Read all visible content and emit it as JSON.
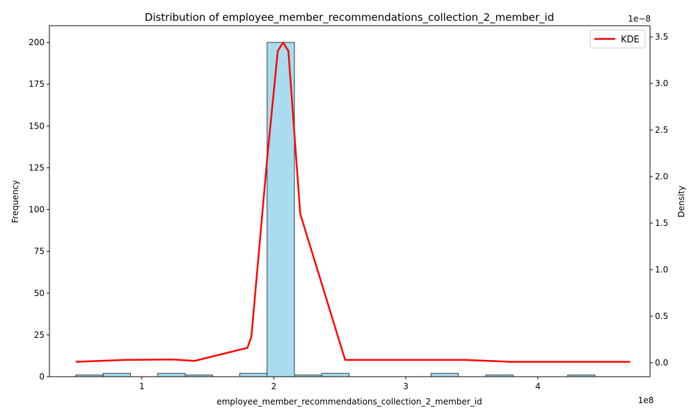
{
  "chart_data": {
    "type": "bar",
    "title": "Distribution of employee_member_recommendations_collection_2_member_id",
    "xlabel": "employee_member_recommendations_collection_2_member_id",
    "ylabel": "Frequency",
    "y2label": "Density",
    "x_offset_label": "1e8",
    "y2_offset_label": "1e−8",
    "xlim": [
      0.3,
      4.85
    ],
    "ylim": [
      0,
      210
    ],
    "y2lim": [
      -0.15,
      3.62
    ],
    "x_ticks": [
      1,
      2,
      3,
      4
    ],
    "x_tick_labels": [
      "1",
      "2",
      "3",
      "4"
    ],
    "y_ticks": [
      0,
      25,
      50,
      75,
      100,
      125,
      150,
      175,
      200
    ],
    "y_tick_labels": [
      "0",
      "25",
      "50",
      "75",
      "100",
      "125",
      "150",
      "175",
      "200"
    ],
    "y2_ticks": [
      0.0,
      0.5,
      1.0,
      1.5,
      2.0,
      2.5,
      3.0,
      3.5
    ],
    "y2_tick_labels": [
      "0.0",
      "0.5",
      "1.0",
      "1.5",
      "2.0",
      "2.5",
      "3.0",
      "3.5"
    ],
    "histogram": {
      "bin_start": 0.5,
      "bin_width": 0.207,
      "counts": [
        1,
        2,
        0,
        2,
        1,
        0,
        2,
        200,
        1,
        2,
        0,
        0,
        0,
        2,
        0,
        1,
        0,
        0,
        1
      ],
      "color": "#a8dcee",
      "edge_color": "#2e3b40"
    },
    "series": [
      {
        "name": "KDE",
        "color": "#ff0000",
        "x": [
          0.5,
          0.87,
          1.23,
          1.4,
          1.8,
          1.83,
          1.95,
          2.03,
          2.07,
          2.11,
          2.2,
          2.54,
          3.45,
          3.8,
          4.2,
          4.7
        ],
        "y": [
          0.01,
          0.03,
          0.035,
          0.02,
          0.16,
          0.28,
          2.2,
          3.35,
          3.44,
          3.35,
          1.6,
          0.03,
          0.03,
          0.01,
          0.01,
          0.01
        ]
      }
    ],
    "legend": {
      "position": "top-right",
      "entries": [
        "KDE"
      ]
    }
  }
}
